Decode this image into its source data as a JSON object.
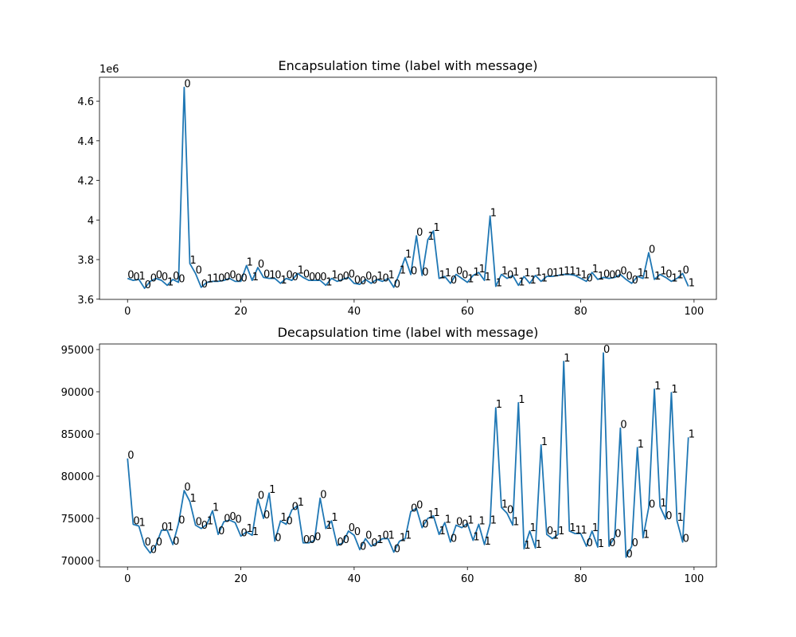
{
  "chart_data": [
    {
      "type": "line",
      "title": "Encapsulation time (label with message)",
      "y_offset_label": "1e6",
      "color": "#1f77b4",
      "x": [
        0,
        1,
        2,
        3,
        4,
        5,
        6,
        7,
        8,
        9,
        10,
        11,
        12,
        13,
        14,
        15,
        16,
        17,
        18,
        19,
        20,
        21,
        22,
        23,
        24,
        25,
        26,
        27,
        28,
        29,
        30,
        31,
        32,
        33,
        34,
        35,
        36,
        37,
        38,
        39,
        40,
        41,
        42,
        43,
        44,
        45,
        46,
        47,
        48,
        49,
        50,
        51,
        52,
        53,
        54,
        55,
        56,
        57,
        58,
        59,
        60,
        61,
        62,
        63,
        64,
        65,
        66,
        67,
        68,
        69,
        70,
        71,
        72,
        73,
        74,
        75,
        76,
        77,
        78,
        79,
        80,
        81,
        82,
        83,
        84,
        85,
        86,
        87,
        88,
        89,
        90,
        91,
        92,
        93,
        94,
        95,
        96,
        97,
        98,
        99
      ],
      "values": [
        3.705,
        3.695,
        3.7,
        3.655,
        3.69,
        3.705,
        3.695,
        3.67,
        3.7,
        3.685,
        4.67,
        3.78,
        3.73,
        3.66,
        3.685,
        3.69,
        3.69,
        3.695,
        3.705,
        3.69,
        3.69,
        3.77,
        3.695,
        3.76,
        3.71,
        3.705,
        3.705,
        3.68,
        3.705,
        3.695,
        3.73,
        3.71,
        3.695,
        3.695,
        3.695,
        3.67,
        3.705,
        3.69,
        3.7,
        3.71,
        3.68,
        3.675,
        3.7,
        3.68,
        3.7,
        3.69,
        3.705,
        3.66,
        3.73,
        3.81,
        3.725,
        3.92,
        3.72,
        3.9,
        3.945,
        3.705,
        3.715,
        3.68,
        3.725,
        3.705,
        3.685,
        3.72,
        3.735,
        3.695,
        4.02,
        3.665,
        3.725,
        3.705,
        3.72,
        3.67,
        3.715,
        3.68,
        3.72,
        3.69,
        3.715,
        3.715,
        3.72,
        3.725,
        3.725,
        3.72,
        3.705,
        3.69,
        3.735,
        3.7,
        3.71,
        3.705,
        3.71,
        3.725,
        3.7,
        3.68,
        3.715,
        3.705,
        3.835,
        3.7,
        3.725,
        3.71,
        3.69,
        3.705,
        3.73,
        3.665
      ],
      "point_labels": [
        "0",
        "0",
        "1",
        "0",
        "0",
        "0",
        "0",
        "1",
        "0",
        "0",
        "0",
        "1",
        "0",
        "0",
        "1",
        "1",
        "0",
        "0",
        "0",
        "0",
        "0",
        "1",
        "1",
        "0",
        "0",
        "1",
        "0",
        "1",
        "0",
        "0",
        "1",
        "0",
        "0",
        "0",
        "0",
        "1",
        "1",
        "0",
        "0",
        "0",
        "0",
        "0",
        "0",
        "0",
        "1",
        "0",
        "1",
        "0",
        "1",
        "1",
        "0",
        "0",
        "0",
        "1",
        "1",
        "1",
        "1",
        "0",
        "0",
        "0",
        "1",
        "1",
        "1",
        "1",
        "1",
        "1",
        "1",
        "0",
        "1",
        "1",
        "1",
        "1",
        "1",
        "1",
        "0",
        "1",
        "1",
        "1",
        "1",
        "1",
        "1",
        "0",
        "1",
        "1",
        "0",
        "0",
        "0",
        "0",
        "0",
        "0",
        "1",
        "1",
        "0",
        "1",
        "1",
        "0",
        "1",
        "1",
        "0",
        "1"
      ],
      "xlim": [
        -4.95,
        103.95
      ],
      "xticks": [
        0,
        20,
        40,
        60,
        80,
        100
      ],
      "ylim": [
        3.599,
        4.721
      ],
      "yticks": [
        3.6,
        3.8,
        4.0,
        4.2,
        4.4,
        4.6
      ]
    },
    {
      "type": "line",
      "title": "Decapsulation time (label with message)",
      "color": "#1f77b4",
      "x": [
        0,
        1,
        2,
        3,
        4,
        5,
        6,
        7,
        8,
        9,
        10,
        11,
        12,
        13,
        14,
        15,
        16,
        17,
        18,
        19,
        20,
        21,
        22,
        23,
        24,
        25,
        26,
        27,
        28,
        29,
        30,
        31,
        32,
        33,
        34,
        35,
        36,
        37,
        38,
        39,
        40,
        41,
        42,
        43,
        44,
        45,
        46,
        47,
        48,
        49,
        50,
        51,
        52,
        53,
        54,
        55,
        56,
        57,
        58,
        59,
        60,
        61,
        62,
        63,
        64,
        65,
        66,
        67,
        68,
        69,
        70,
        71,
        72,
        73,
        74,
        75,
        76,
        77,
        78,
        79,
        80,
        81,
        82,
        83,
        84,
        85,
        86,
        87,
        88,
        89,
        90,
        91,
        92,
        93,
        94,
        95,
        96,
        97,
        98,
        99
      ],
      "values": [
        82100,
        74300,
        74100,
        71800,
        70900,
        71800,
        73600,
        73600,
        71900,
        74400,
        78300,
        77000,
        74200,
        73800,
        74300,
        75900,
        73100,
        74600,
        74800,
        74500,
        72900,
        73400,
        73000,
        77300,
        75000,
        78000,
        72300,
        74700,
        74300,
        76000,
        76500,
        72100,
        72100,
        72400,
        77400,
        73800,
        74700,
        71800,
        72100,
        73500,
        73000,
        71300,
        72600,
        71700,
        72100,
        72600,
        72600,
        71000,
        72300,
        72600,
        75800,
        76200,
        73900,
        75000,
        75300,
        73100,
        74500,
        72200,
        74200,
        73900,
        74400,
        72400,
        74300,
        71900,
        74400,
        88100,
        76300,
        75600,
        74200,
        88700,
        71400,
        73500,
        71500,
        83700,
        73100,
        72600,
        73100,
        93600,
        73500,
        73200,
        73200,
        71700,
        73500,
        71600,
        94600,
        71700,
        72800,
        85700,
        70400,
        71700,
        83400,
        72700,
        76300,
        90300,
        76400,
        74900,
        89900,
        74700,
        72200,
        84600
      ],
      "point_labels": [
        "0",
        "0",
        "1",
        "0",
        "0",
        "0",
        "0",
        "1",
        "0",
        "0",
        "0",
        "1",
        "0",
        "0",
        "1",
        "1",
        "0",
        "0",
        "0",
        "0",
        "0",
        "1",
        "1",
        "0",
        "0",
        "1",
        "0",
        "1",
        "0",
        "0",
        "1",
        "0",
        "0",
        "0",
        "0",
        "1",
        "1",
        "0",
        "0",
        "0",
        "0",
        "0",
        "0",
        "0",
        "1",
        "0",
        "1",
        "0",
        "1",
        "1",
        "0",
        "0",
        "0",
        "1",
        "1",
        "1",
        "1",
        "0",
        "0",
        "0",
        "1",
        "1",
        "1",
        "1",
        "1",
        "1",
        "1",
        "0",
        "1",
        "1",
        "1",
        "1",
        "1",
        "1",
        "0",
        "1",
        "1",
        "1",
        "1",
        "1",
        "1",
        "0",
        "1",
        "1",
        "0",
        "0",
        "0",
        "0",
        "0",
        "0",
        "1",
        "1",
        "0",
        "1",
        "1",
        "0",
        "1",
        "1",
        "0",
        "1"
      ],
      "xlim": [
        -4.95,
        103.95
      ],
      "xticks": [
        0,
        20,
        40,
        60,
        80,
        100
      ],
      "ylim": [
        69250,
        95660
      ],
      "yticks": [
        70000,
        75000,
        80000,
        85000,
        90000,
        95000
      ]
    }
  ]
}
